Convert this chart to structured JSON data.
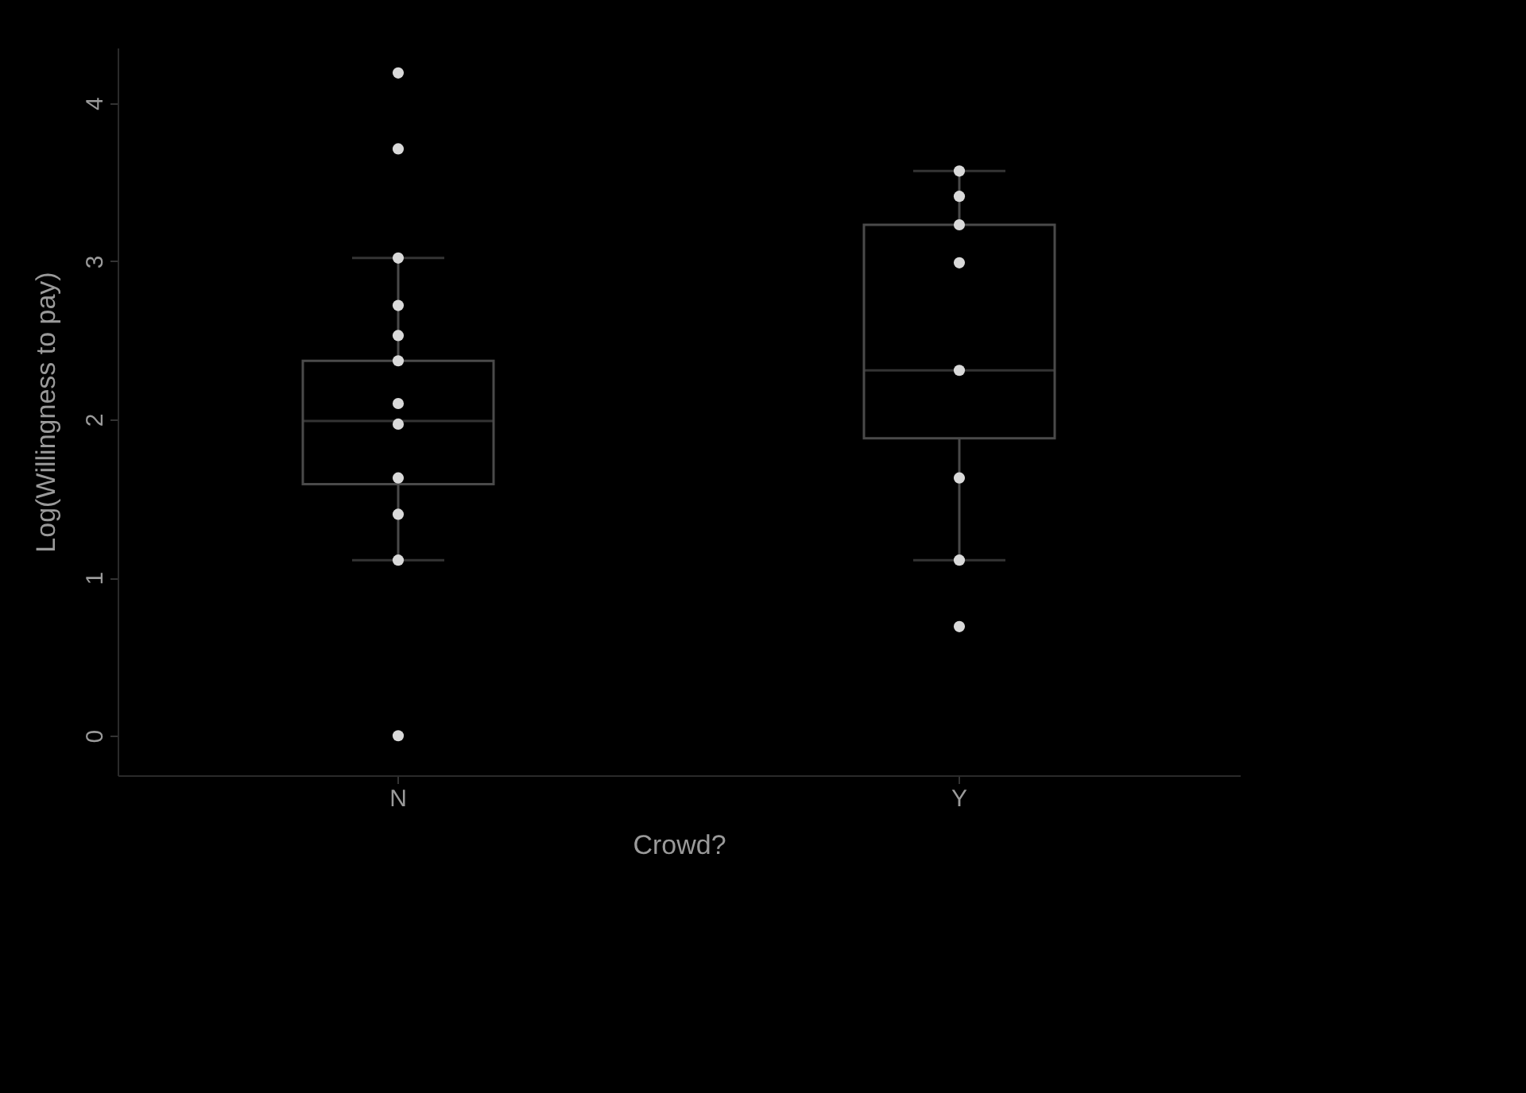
{
  "chart_data": {
    "type": "box",
    "ylabel": "Log(Willingness to pay)",
    "xlabel": "Crowd?",
    "categories": [
      "N",
      "Y"
    ],
    "ylim": [
      -0.25,
      4.35
    ],
    "yticks": [
      0,
      1,
      2,
      3,
      4
    ],
    "grid": false,
    "series": [
      {
        "type": "box",
        "color": "#4a4a4a",
        "boxes": [
          {
            "low": 1.11,
            "q1": 1.59,
            "median": 1.99,
            "q3": 2.37,
            "high": 3.02
          },
          {
            "low": 1.11,
            "q1": 1.88,
            "median": 2.31,
            "q3": 3.23,
            "high": 3.57
          }
        ]
      },
      {
        "type": "scatter",
        "color": "#d9d9d9",
        "marker": "circle",
        "x": [
          "N",
          "N",
          "N",
          "N",
          "N",
          "N",
          "N",
          "N",
          "N",
          "N",
          "N",
          "N",
          "Y",
          "Y",
          "Y",
          "Y",
          "Y",
          "Y",
          "Y",
          "Y"
        ],
        "values": [
          4.19,
          3.71,
          3.02,
          2.72,
          2.53,
          2.37,
          2.1,
          1.97,
          1.63,
          1.4,
          1.11,
          0,
          3.57,
          3.41,
          3.23,
          2.99,
          2.31,
          1.63,
          1.11,
          0.69
        ]
      }
    ]
  }
}
